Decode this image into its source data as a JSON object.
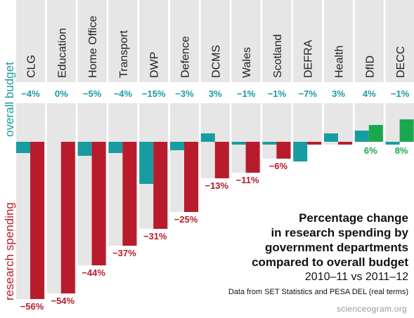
{
  "chart_data": {
    "type": "bar",
    "title_lines": [
      "Percentage change",
      "in research spending by",
      "government departments",
      "compared to overall budget"
    ],
    "subtitle": "2010–11 vs 2011–12",
    "note": "Data from SET Statistics and PESA DEL (real terms)",
    "credit": "scienceogram.org",
    "categories": [
      "CLG",
      "Education",
      "Home Office",
      "Transport",
      "DWP",
      "Defence",
      "DCMS",
      "Wales",
      "Scotland",
      "DEFRA",
      "Health",
      "DfID",
      "DECC"
    ],
    "series": [
      {
        "name": "overall budget",
        "color": "#189c9f",
        "values": [
          -4,
          0,
          -5,
          -4,
          -15,
          -3,
          3,
          -1,
          -1,
          -7,
          3,
          4,
          -1
        ]
      },
      {
        "name": "research spending",
        "color": "#b81c2c",
        "positive_color": "#1aa84e",
        "values": [
          -56,
          -54,
          -44,
          -37,
          -31,
          -25,
          -13,
          -11,
          -6,
          -1,
          -1,
          6,
          8
        ]
      }
    ],
    "overall_labels": [
      "−4%",
      "0%",
      "−5%",
      "−4%",
      "−15%",
      "−3%",
      "3%",
      "−1%",
      "−1%",
      "−7%",
      "3%",
      "4%",
      "−1%"
    ],
    "research_labels": [
      "−56%",
      "−54%",
      "−44%",
      "−37%",
      "−31%",
      "−25%",
      "−13%",
      "−11%",
      "−6%",
      "",
      "",
      "6%",
      "8%"
    ]
  },
  "axis_labels": {
    "overall": "overall budget",
    "research": "research spending"
  },
  "colors": {
    "panel": "#e6e6e6",
    "teal": "#189c9f",
    "red": "#b81c2c",
    "green": "#1aa84e"
  }
}
